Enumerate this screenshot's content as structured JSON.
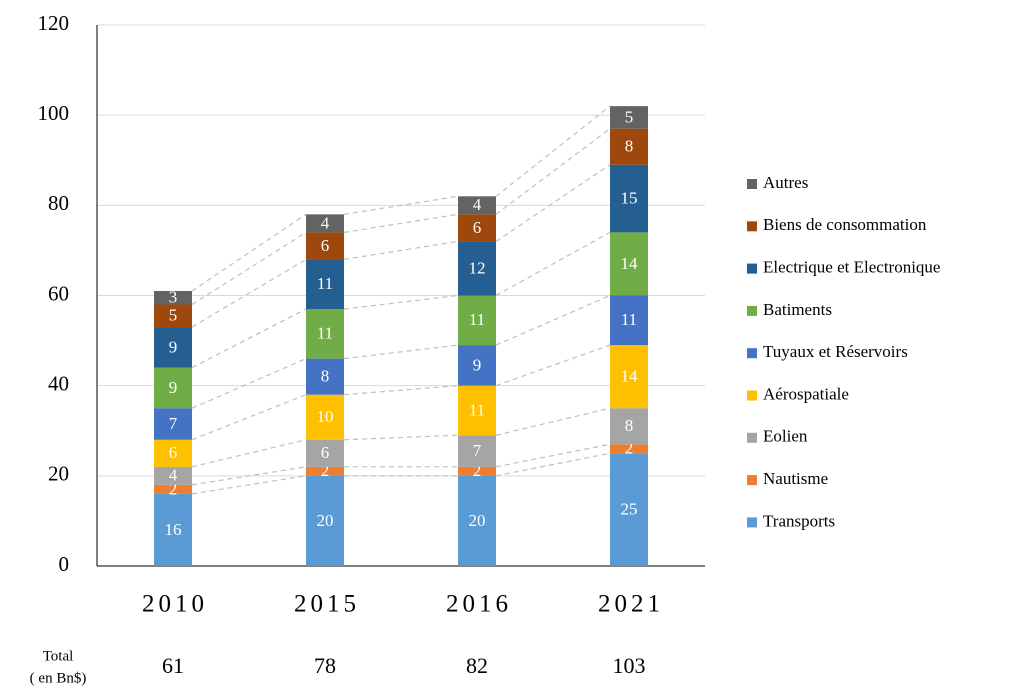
{
  "chart_data": {
    "type": "stacked_bar",
    "categories": [
      "2010",
      "2015",
      "2016",
      "2021"
    ],
    "series": [
      {
        "name": "Transports",
        "color": "#5b9bd5",
        "values": [
          16,
          20,
          20,
          25
        ]
      },
      {
        "name": "Nautisme",
        "color": "#ed7d31",
        "values": [
          2,
          2,
          2,
          2
        ]
      },
      {
        "name": "Eolien",
        "color": "#a5a5a5",
        "values": [
          4,
          6,
          7,
          8
        ]
      },
      {
        "name": "Aérospatiale",
        "color": "#ffc000",
        "values": [
          6,
          10,
          11,
          14
        ]
      },
      {
        "name": "Tuyaux et Réservoirs",
        "color": "#4472c4",
        "values": [
          7,
          8,
          9,
          11
        ]
      },
      {
        "name": "Batiments",
        "color": "#70ad47",
        "values": [
          9,
          11,
          11,
          14
        ]
      },
      {
        "name": "Electrique et Electronique",
        "color": "#255e91",
        "values": [
          9,
          11,
          12,
          15
        ]
      },
      {
        "name": "Biens de consommation",
        "color": "#9e480e",
        "values": [
          5,
          6,
          6,
          8
        ]
      },
      {
        "name": "Autres",
        "color": "#636363",
        "values": [
          3,
          4,
          4,
          5
        ]
      }
    ],
    "ylim": [
      0,
      120
    ],
    "yticks": [
      0,
      20,
      40,
      60,
      80,
      100,
      120
    ],
    "grid": true,
    "legend": "right",
    "totals_label": "Total",
    "totals_sublabel": "( en Bn$)",
    "totals": [
      61,
      78,
      82,
      103
    ]
  }
}
